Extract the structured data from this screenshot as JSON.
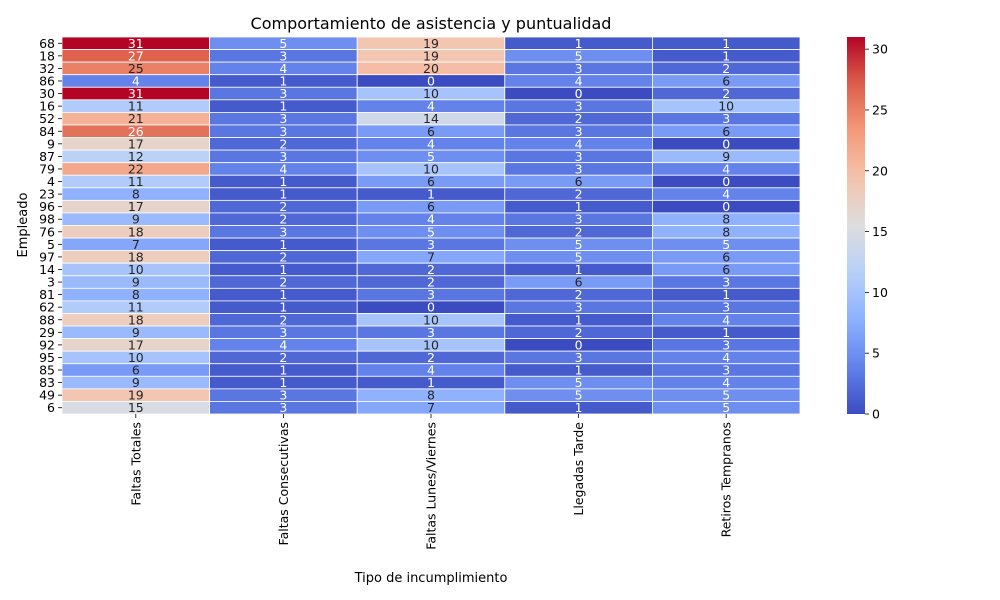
{
  "chart_data": {
    "type": "heatmap",
    "title": "Comportamiento de asistencia y puntualidad",
    "xlabel": "Tipo de incumplimiento",
    "ylabel": "Empleado",
    "columns": [
      "Faltas Totales",
      "Faltas Consecutivas",
      "Faltas Lunes/Viernes",
      "Llegadas Tarde",
      "Retiros Tempranos"
    ],
    "rows": [
      "68",
      "18",
      "32",
      "86",
      "30",
      "16",
      "52",
      "84",
      "9",
      "87",
      "79",
      "4",
      "23",
      "96",
      "98",
      "76",
      "5",
      "97",
      "14",
      "3",
      "81",
      "62",
      "88",
      "29",
      "92",
      "95",
      "85",
      "83",
      "49",
      "6"
    ],
    "values": [
      [
        31,
        5,
        19,
        1,
        1
      ],
      [
        27,
        3,
        19,
        5,
        1
      ],
      [
        25,
        4,
        20,
        3,
        2
      ],
      [
        4,
        1,
        0,
        4,
        6
      ],
      [
        31,
        3,
        10,
        0,
        2
      ],
      [
        11,
        1,
        4,
        3,
        10
      ],
      [
        21,
        3,
        14,
        2,
        3
      ],
      [
        26,
        3,
        6,
        3,
        6
      ],
      [
        17,
        2,
        4,
        4,
        0
      ],
      [
        12,
        3,
        5,
        3,
        9
      ],
      [
        22,
        4,
        10,
        3,
        4
      ],
      [
        11,
        1,
        6,
        6,
        0
      ],
      [
        8,
        1,
        1,
        2,
        4
      ],
      [
        17,
        2,
        6,
        1,
        0
      ],
      [
        9,
        2,
        4,
        3,
        8
      ],
      [
        18,
        3,
        5,
        2,
        8
      ],
      [
        7,
        1,
        3,
        5,
        5
      ],
      [
        18,
        2,
        7,
        5,
        6
      ],
      [
        10,
        1,
        2,
        1,
        6
      ],
      [
        9,
        2,
        2,
        6,
        3
      ],
      [
        8,
        1,
        3,
        2,
        1
      ],
      [
        11,
        1,
        0,
        3,
        3
      ],
      [
        18,
        2,
        10,
        1,
        4
      ],
      [
        9,
        3,
        3,
        2,
        1
      ],
      [
        17,
        4,
        10,
        0,
        3
      ],
      [
        10,
        2,
        2,
        3,
        4
      ],
      [
        6,
        1,
        4,
        1,
        3
      ],
      [
        9,
        1,
        1,
        5,
        4
      ],
      [
        19,
        3,
        8,
        5,
        5
      ],
      [
        15,
        3,
        7,
        1,
        5
      ]
    ],
    "colormap": "coolwarm",
    "vmin": 0,
    "vmax": 31,
    "colorbar_ticks": [
      0,
      5,
      10,
      15,
      20,
      25,
      30
    ],
    "legend_placement": "right"
  }
}
